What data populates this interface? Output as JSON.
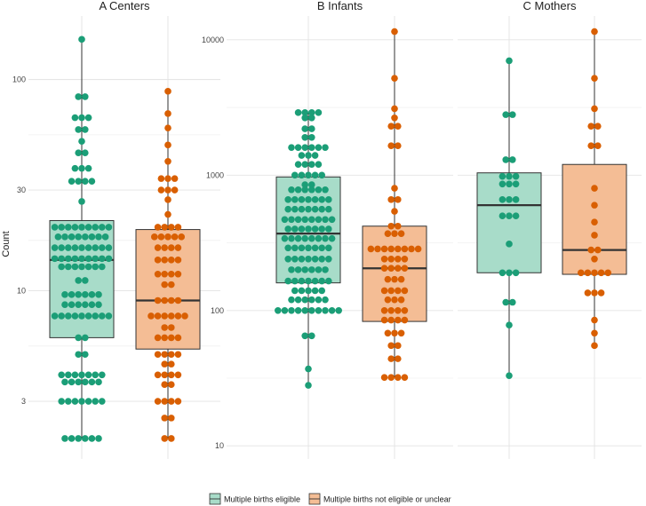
{
  "chart_data": {
    "type": "boxplot-dotplot",
    "ylabel": "Count",
    "yscale": "log10",
    "colors": {
      "eligible": "#1b9e77",
      "not_eligible": "#d95f02",
      "eligible_fill": "#a8dcc9",
      "not_eligible_fill": "#f4bd95"
    },
    "legend": [
      {
        "key": "eligible",
        "label": "Multiple births eligible"
      },
      {
        "key": "not_eligible",
        "label": "Multiple births not eligible or unclear"
      }
    ],
    "panels": [
      {
        "title": "A  Centers",
        "ylim": [
          1.6,
          200
        ],
        "yticks": [
          3,
          10,
          30,
          100
        ],
        "ytick_labels": [
          "3",
          "10",
          "30",
          "100"
        ],
        "groups": [
          {
            "key": "eligible",
            "box": {
              "q1": 6,
              "median": 14,
              "q3": 21.5,
              "whisker_low": 2,
              "whisker_high": 155
            },
            "points": [
              {
                "y": 155,
                "n": 1
              },
              {
                "y": 83,
                "n": 2
              },
              {
                "y": 66,
                "n": 3
              },
              {
                "y": 58,
                "n": 2
              },
              {
                "y": 51,
                "n": 1
              },
              {
                "y": 45,
                "n": 2
              },
              {
                "y": 38,
                "n": 3
              },
              {
                "y": 33,
                "n": 4
              },
              {
                "y": 26.5,
                "n": 1
              },
              {
                "y": 20,
                "n": 9
              },
              {
                "y": 18,
                "n": 8
              },
              {
                "y": 16,
                "n": 9
              },
              {
                "y": 14.2,
                "n": 9
              },
              {
                "y": 13,
                "n": 7
              },
              {
                "y": 11.2,
                "n": 2
              },
              {
                "y": 9.6,
                "n": 6
              },
              {
                "y": 8.6,
                "n": 6
              },
              {
                "y": 7.6,
                "n": 9
              },
              {
                "y": 6,
                "n": 2
              },
              {
                "y": 5,
                "n": 2
              },
              {
                "y": 4,
                "n": 7
              },
              {
                "y": 3.7,
                "n": 6
              },
              {
                "y": 3,
                "n": 7
              },
              {
                "y": 2,
                "n": 6
              }
            ]
          },
          {
            "key": "not_eligible",
            "box": {
              "q1": 5.3,
              "median": 9,
              "q3": 19.5,
              "whisker_low": 2,
              "whisker_high": 88
            },
            "points": [
              {
                "y": 88,
                "n": 1
              },
              {
                "y": 69,
                "n": 1
              },
              {
                "y": 59,
                "n": 1
              },
              {
                "y": 49,
                "n": 1
              },
              {
                "y": 41,
                "n": 1
              },
              {
                "y": 34,
                "n": 3
              },
              {
                "y": 30,
                "n": 3
              },
              {
                "y": 27,
                "n": 1
              },
              {
                "y": 23,
                "n": 1
              },
              {
                "y": 20,
                "n": 4
              },
              {
                "y": 18,
                "n": 5
              },
              {
                "y": 16,
                "n": 4
              },
              {
                "y": 14,
                "n": 4
              },
              {
                "y": 12,
                "n": 4
              },
              {
                "y": 10.7,
                "n": 2
              },
              {
                "y": 9,
                "n": 4
              },
              {
                "y": 7.6,
                "n": 6
              },
              {
                "y": 6.7,
                "n": 2
              },
              {
                "y": 6,
                "n": 4
              },
              {
                "y": 5,
                "n": 4
              },
              {
                "y": 4.5,
                "n": 2
              },
              {
                "y": 4,
                "n": 4
              },
              {
                "y": 3.6,
                "n": 2
              },
              {
                "y": 3,
                "n": 4
              },
              {
                "y": 2.5,
                "n": 2
              },
              {
                "y": 2,
                "n": 2
              }
            ]
          }
        ]
      },
      {
        "title": "B  Infants",
        "ylim": [
          8,
          15000
        ],
        "yticks": [
          10,
          100,
          1000,
          10000
        ],
        "ytick_labels": [
          "10",
          "100",
          "1000",
          "10000"
        ],
        "groups": [
          {
            "key": "eligible",
            "box": {
              "q1": 160,
              "median": 370,
              "q3": 970,
              "whisker_low": 28,
              "whisker_high": 2900
            },
            "points": [
              {
                "y": 2900,
                "n": 4
              },
              {
                "y": 2650,
                "n": 2
              },
              {
                "y": 2200,
                "n": 2
              },
              {
                "y": 1900,
                "n": 2
              },
              {
                "y": 1600,
                "n": 6
              },
              {
                "y": 1400,
                "n": 3
              },
              {
                "y": 1200,
                "n": 4
              },
              {
                "y": 1000,
                "n": 5
              },
              {
                "y": 850,
                "n": 2
              },
              {
                "y": 780,
                "n": 6
              },
              {
                "y": 660,
                "n": 7
              },
              {
                "y": 560,
                "n": 7
              },
              {
                "y": 470,
                "n": 8
              },
              {
                "y": 400,
                "n": 7
              },
              {
                "y": 340,
                "n": 8
              },
              {
                "y": 290,
                "n": 7
              },
              {
                "y": 240,
                "n": 7
              },
              {
                "y": 200,
                "n": 6
              },
              {
                "y": 165,
                "n": 7
              },
              {
                "y": 140,
                "n": 5
              },
              {
                "y": 120,
                "n": 6
              },
              {
                "y": 100,
                "n": 10
              },
              {
                "y": 65,
                "n": 2
              },
              {
                "y": 37,
                "n": 1
              },
              {
                "y": 28,
                "n": 1
              }
            ]
          },
          {
            "key": "not_eligible",
            "box": {
              "q1": 83,
              "median": 205,
              "q3": 420,
              "whisker_low": 32,
              "whisker_high": 11500
            },
            "points": [
              {
                "y": 11500,
                "n": 1
              },
              {
                "y": 5200,
                "n": 1
              },
              {
                "y": 3100,
                "n": 1
              },
              {
                "y": 2650,
                "n": 1
              },
              {
                "y": 2300,
                "n": 2
              },
              {
                "y": 1650,
                "n": 2
              },
              {
                "y": 800,
                "n": 1
              },
              {
                "y": 660,
                "n": 2
              },
              {
                "y": 540,
                "n": 1
              },
              {
                "y": 420,
                "n": 2
              },
              {
                "y": 370,
                "n": 3
              },
              {
                "y": 285,
                "n": 8
              },
              {
                "y": 240,
                "n": 4
              },
              {
                "y": 205,
                "n": 4
              },
              {
                "y": 170,
                "n": 3
              },
              {
                "y": 140,
                "n": 4
              },
              {
                "y": 120,
                "n": 3
              },
              {
                "y": 100,
                "n": 4
              },
              {
                "y": 85,
                "n": 4
              },
              {
                "y": 68,
                "n": 3
              },
              {
                "y": 55,
                "n": 2
              },
              {
                "y": 44,
                "n": 2
              },
              {
                "y": 32,
                "n": 4
              }
            ]
          }
        ]
      },
      {
        "title": "C  Mothers",
        "ylim": [
          8,
          15000
        ],
        "yticks": [
          10,
          100,
          1000,
          10000
        ],
        "ytick_labels": [
          "",
          "",
          "",
          ""
        ],
        "groups": [
          {
            "key": "eligible",
            "box": {
              "q1": 190,
              "median": 600,
              "q3": 1040,
              "whisker_low": 33,
              "whisker_high": 7000
            },
            "points": [
              {
                "y": 7000,
                "n": 1
              },
              {
                "y": 2800,
                "n": 2
              },
              {
                "y": 1300,
                "n": 2
              },
              {
                "y": 980,
                "n": 3
              },
              {
                "y": 860,
                "n": 3
              },
              {
                "y": 660,
                "n": 3
              },
              {
                "y": 500,
                "n": 3
              },
              {
                "y": 310,
                "n": 1
              },
              {
                "y": 190,
                "n": 3
              },
              {
                "y": 115,
                "n": 2
              },
              {
                "y": 78,
                "n": 1
              },
              {
                "y": 33,
                "n": 1
              }
            ]
          },
          {
            "key": "not_eligible",
            "box": {
              "q1": 185,
              "median": 280,
              "q3": 1200,
              "whisker_low": 55,
              "whisker_high": 11500
            },
            "points": [
              {
                "y": 11500,
                "n": 1
              },
              {
                "y": 5200,
                "n": 1
              },
              {
                "y": 3100,
                "n": 1
              },
              {
                "y": 2300,
                "n": 2
              },
              {
                "y": 1650,
                "n": 2
              },
              {
                "y": 800,
                "n": 1
              },
              {
                "y": 600,
                "n": 1
              },
              {
                "y": 450,
                "n": 1
              },
              {
                "y": 360,
                "n": 1
              },
              {
                "y": 280,
                "n": 2
              },
              {
                "y": 240,
                "n": 1
              },
              {
                "y": 190,
                "n": 5
              },
              {
                "y": 135,
                "n": 3
              },
              {
                "y": 85,
                "n": 1
              },
              {
                "y": 68,
                "n": 1
              },
              {
                "y": 55,
                "n": 1
              }
            ]
          }
        ]
      }
    ]
  }
}
